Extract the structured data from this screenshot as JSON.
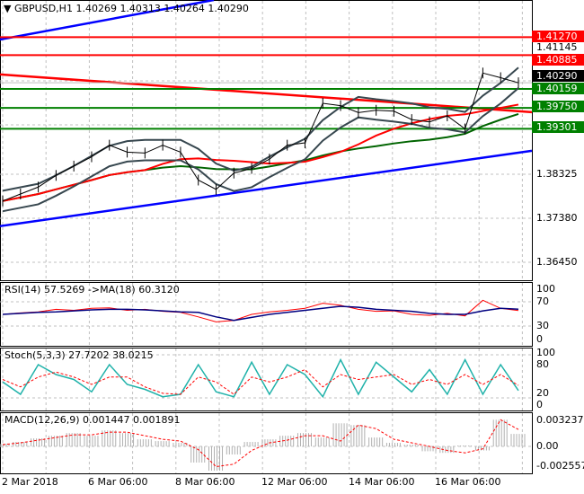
{
  "header": {
    "symbol_label": "GBPUSD,H1",
    "ohlc": "1.40269 1.40313 1.40264 1.40290"
  },
  "colors": {
    "support": "#008000",
    "resistance": "#ff0000",
    "trend": "#0000ff",
    "bands": "#37474f",
    "current": "#000000"
  },
  "chart_data": [
    {
      "type": "line",
      "title": "GBPUSD,H1",
      "y_ticks": [
        "1.38325",
        "1.37380",
        "1.36450"
      ],
      "y_tick_values": [
        1.38325,
        1.3738,
        1.3645
      ],
      "partially_hidden_tick": "1.41145",
      "current_price": {
        "label": "1.40290",
        "value": 1.4029
      },
      "levels": [
        {
          "label": "1.41270",
          "value": 1.4127,
          "kind": "resistance"
        },
        {
          "label": "1.40885",
          "value": 1.40885,
          "kind": "resistance"
        },
        {
          "label": "1.40159",
          "value": 1.40159,
          "kind": "support"
        },
        {
          "label": "1.39750",
          "value": 1.3975,
          "kind": "support"
        },
        {
          "label": "1.39301",
          "value": 1.39301,
          "kind": "support"
        }
      ],
      "trendlines": [
        {
          "color": "blue",
          "start": 1.3721,
          "end": 1.3883
        },
        {
          "color": "red",
          "start": 1.4047,
          "end": 1.3966
        },
        {
          "color": "blue",
          "start": 1.4122,
          "end": 1.421
        }
      ],
      "close": [
        1.3775,
        1.379,
        1.3805,
        1.383,
        1.385,
        1.387,
        1.3895,
        1.388,
        1.3878,
        1.3895,
        1.388,
        1.382,
        1.38,
        1.3835,
        1.3845,
        1.3865,
        1.3895,
        1.39,
        1.3985,
        1.398,
        1.3965,
        1.397,
        1.3968,
        1.395,
        1.3945,
        1.3958,
        1.393,
        1.405,
        1.404,
        1.4029
      ]
    },
    {
      "type": "line",
      "title": "RSI(14) 57.5269  ->MA(18) 60.3120",
      "y_ticks": [
        "100",
        "70",
        "30",
        "0"
      ],
      "series": [
        {
          "name": "RSI(14)",
          "values": [
            50,
            53,
            55,
            60,
            58,
            62,
            63,
            58,
            60,
            56,
            54,
            45,
            35,
            38,
            50,
            55,
            58,
            62,
            72,
            68,
            60,
            56,
            57,
            50,
            48,
            52,
            47,
            78,
            62,
            57.5
          ]
        },
        {
          "name": "MA(18)",
          "values": [
            50,
            52,
            54,
            55,
            57,
            59,
            60,
            60,
            59,
            57,
            55,
            54,
            45,
            38,
            44,
            50,
            54,
            58,
            62,
            66,
            64,
            60,
            58,
            56,
            52,
            50,
            50,
            57,
            62,
            60.3
          ]
        }
      ]
    },
    {
      "type": "line",
      "title": "Stoch(5,3,3) 27.7202 38.0215",
      "y_ticks": [
        "100",
        "80",
        "20",
        "0"
      ],
      "series": [
        {
          "values": [
            45,
            20,
            80,
            60,
            50,
            25,
            80,
            40,
            30,
            15,
            20,
            80,
            25,
            15,
            85,
            20,
            80,
            60,
            15,
            90,
            20,
            85,
            55,
            25,
            70,
            20,
            90,
            20,
            80,
            27.7
          ]
        },
        {
          "values": [
            50,
            35,
            55,
            65,
            55,
            40,
            55,
            55,
            35,
            22,
            20,
            55,
            45,
            20,
            55,
            45,
            55,
            70,
            35,
            60,
            50,
            55,
            60,
            40,
            50,
            40,
            60,
            40,
            60,
            38
          ]
        }
      ]
    },
    {
      "type": "bar",
      "title": "MACD(12,26,9) 0.001447 0.001891",
      "y_ticks": [
        "0.003237",
        "0.00",
        "-0.002557"
      ],
      "series": [
        {
          "values": [
            0.0003,
            0.0005,
            0.0009,
            0.0012,
            0.0015,
            0.0012,
            0.0018,
            0.0015,
            0.0008,
            0.0006,
            0.0004,
            -0.002,
            -0.003,
            -0.001,
            0.0005,
            0.0008,
            0.0012,
            0.0015,
            0.001,
            0.0026,
            0.0024,
            0.001,
            0.0004,
            0.0002,
            -0.0006,
            -0.0008,
            0.0001,
            -0.0005,
            0.003,
            0.0014
          ]
        },
        {
          "values": [
            0.0002,
            0.0004,
            0.0007,
            0.001,
            0.0013,
            0.0013,
            0.0016,
            0.0016,
            0.0012,
            0.0008,
            0.0006,
            -0.0004,
            -0.0025,
            -0.0022,
            -0.0005,
            0.0004,
            0.0007,
            0.0012,
            0.0012,
            0.0006,
            0.0024,
            0.002,
            0.0008,
            0.0004,
            0.0,
            -0.0005,
            -0.0008,
            -0.0003,
            0.003,
            0.0019
          ]
        }
      ]
    }
  ],
  "x_ticks": [
    "2 Mar 2018",
    "6 Mar 06:00",
    "8 Mar 06:00",
    "12 Mar 06:00",
    "14 Mar 06:00",
    "16 Mar 06:00"
  ]
}
